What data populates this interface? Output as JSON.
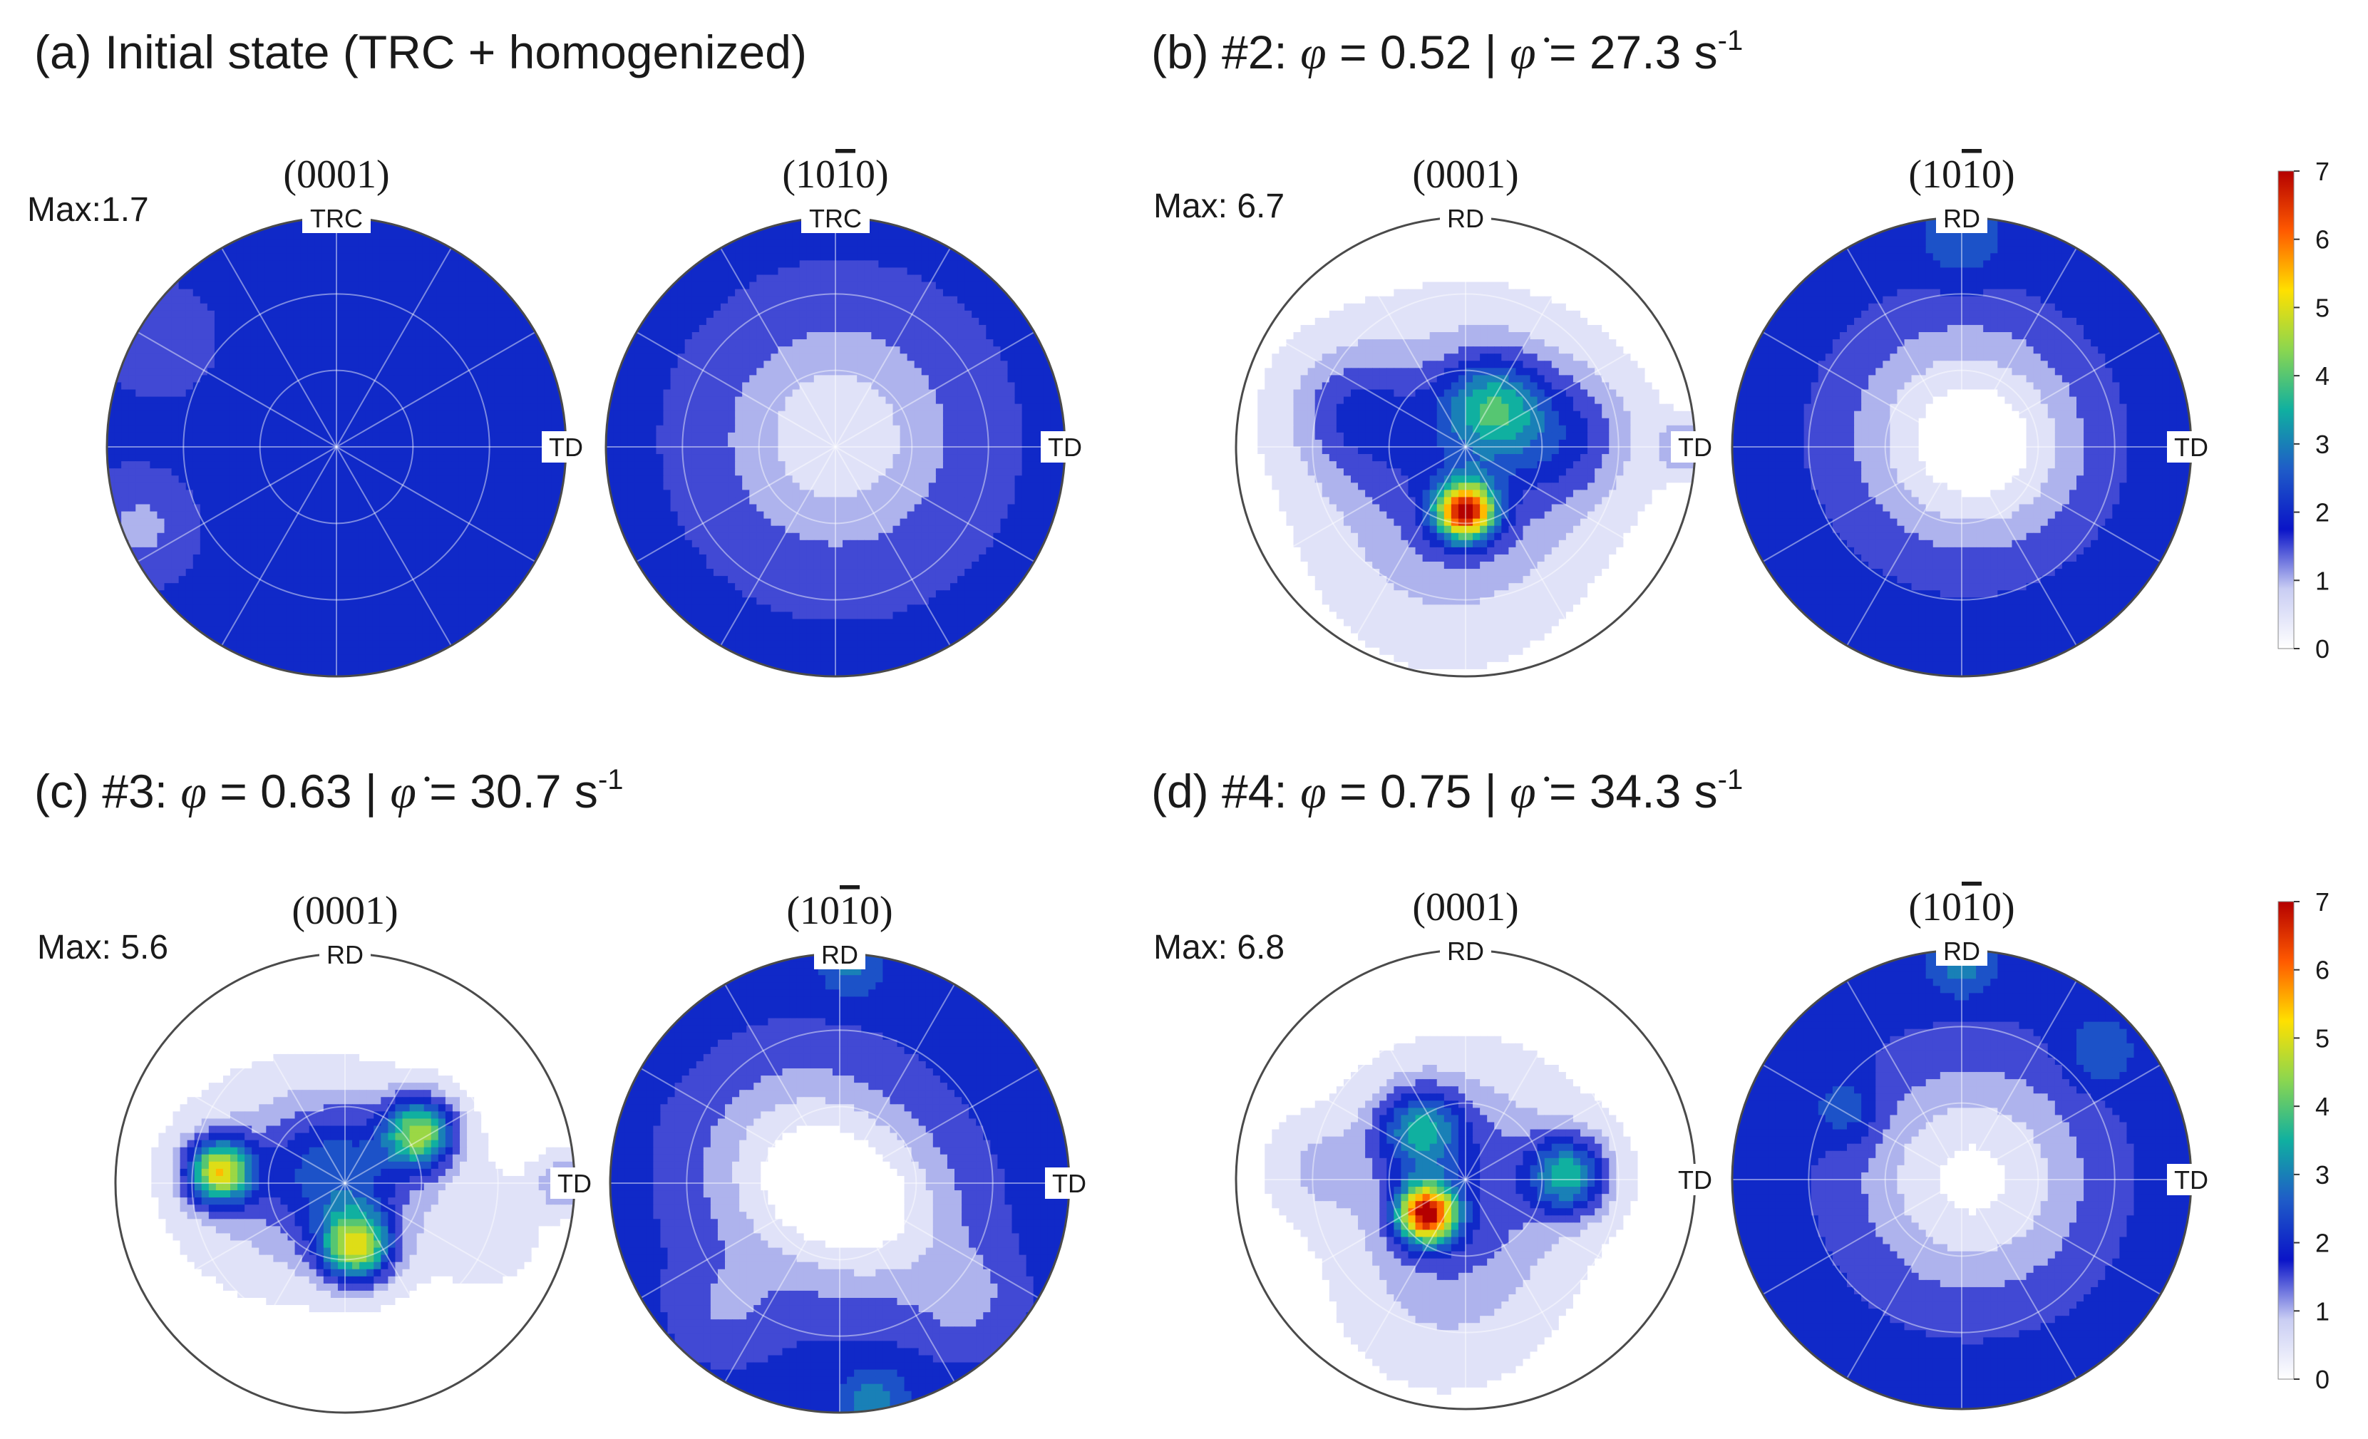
{
  "colormap": [
    "#ffffff",
    "#c9cdf3",
    "#0a14c8",
    "#1f5cc8",
    "#10b0a0",
    "#8ad650",
    "#ffe000",
    "#ff5a00",
    "#b40000"
  ],
  "colorbar": {
    "min": 0,
    "max": 7,
    "ticks": [
      "0",
      "1",
      "2",
      "3",
      "4",
      "5",
      "6",
      "7"
    ]
  },
  "chart_data": [
    {
      "type": "heatmap",
      "panel": "(a)",
      "title_parts": {
        "prefix": "(a) Initial state (TRC + homogenized)"
      },
      "max_label": "Max:1.7",
      "figures": [
        {
          "label": "(0001)",
          "top": "TRC",
          "right": "TD",
          "background": 1.9,
          "blobs": [
            {
              "x": -0.85,
              "y": -0.35,
              "i": -0.8,
              "s": 0.16
            },
            {
              "x": -0.75,
              "y": 0.45,
              "i": -0.4,
              "s": 0.2
            },
            {
              "x": 0.0,
              "y": 0.0,
              "i": 0.15,
              "s": 0.5
            }
          ]
        },
        {
          "label": "(10̅1̅0)",
          "label_text": "(10",
          "label_bar": "1",
          "label_end": "0)",
          "top": "TRC",
          "right": "TD",
          "background": 1.95,
          "blobs": [
            {
              "x": 0.0,
              "y": 0.05,
              "i": -1.2,
              "s": 0.32
            },
            {
              "x": 0.05,
              "y": 0.0,
              "i": -0.4,
              "s": 0.55
            }
          ]
        }
      ]
    },
    {
      "type": "heatmap",
      "panel": "(b)",
      "title_parts": {
        "prefix": "(b) #2: ",
        "phi": "φ",
        "eq1": " = 0.52 | ",
        "phidot": "φ̇",
        "eq2": " = 27.3 s",
        "sup": "-1"
      },
      "max_label": "Max: 6.7",
      "figures": [
        {
          "label": "(0001)",
          "top": "RD",
          "right": "TD",
          "background": 0.0,
          "blobs": [
            {
              "x": 0.0,
              "y": -0.28,
              "i": 5.5,
              "s": 0.09
            },
            {
              "x": 0.12,
              "y": 0.18,
              "i": 2.3,
              "s": 0.15
            },
            {
              "x": -0.5,
              "y": 0.15,
              "i": 1.3,
              "s": 0.2
            },
            {
              "x": 0.45,
              "y": 0.05,
              "i": 1.2,
              "s": 0.2
            },
            {
              "x": 0.0,
              "y": 0.0,
              "i": 1.5,
              "s": 0.38
            },
            {
              "x": 0.95,
              "y": 0.0,
              "i": 1.2,
              "s": 0.08
            },
            {
              "x": -0.1,
              "y": -0.45,
              "i": 0.6,
              "s": 0.35
            }
          ]
        },
        {
          "label": "(10̅1̅0)",
          "label_text": "(10",
          "label_bar": "1",
          "label_end": "0)",
          "top": "RD",
          "right": "TD",
          "background": 2.0,
          "blobs": [
            {
              "x": 0.0,
              "y": 0.05,
              "i": -1.9,
              "s": 0.34
            },
            {
              "x": 0.2,
              "y": -0.05,
              "i": -0.5,
              "s": 0.25
            },
            {
              "x": 0.0,
              "y": 0.9,
              "i": 0.8,
              "s": 0.12
            }
          ]
        }
      ]
    },
    {
      "type": "heatmap",
      "panel": "(c)",
      "title_parts": {
        "prefix": "(c) #3: ",
        "phi": "φ",
        "eq1": " = 0.63 | ",
        "phidot": "φ̇",
        "eq2": " = 30.7 s",
        "sup": "-1"
      },
      "max_label": "Max: 5.6",
      "figures": [
        {
          "label": "(0001)",
          "top": "RD",
          "right": "TD",
          "background": 0.0,
          "blobs": [
            {
              "x": -0.55,
              "y": 0.05,
              "i": 4.5,
              "s": 0.1
            },
            {
              "x": 0.33,
              "y": 0.22,
              "i": 4.0,
              "s": 0.11
            },
            {
              "x": 0.05,
              "y": -0.28,
              "i": 4.2,
              "s": 0.11
            },
            {
              "x": 0.0,
              "y": 0.05,
              "i": 2.0,
              "s": 0.22
            },
            {
              "x": -0.3,
              "y": 0.0,
              "i": 1.0,
              "s": 0.3
            },
            {
              "x": 0.95,
              "y": 0.0,
              "i": 1.3,
              "s": 0.08
            },
            {
              "x": 0.6,
              "y": -0.2,
              "i": 0.5,
              "s": 0.2
            }
          ]
        },
        {
          "label": "(10̅1̅0)",
          "label_text": "(10",
          "label_bar": "1",
          "label_end": "0)",
          "top": "RD",
          "right": "TD",
          "background": 1.9,
          "blobs": [
            {
              "x": -0.15,
              "y": 0.05,
              "i": -1.9,
              "s": 0.3
            },
            {
              "x": 0.2,
              "y": -0.15,
              "i": -1.2,
              "s": 0.25
            },
            {
              "x": 0.55,
              "y": -0.5,
              "i": -0.8,
              "s": 0.15
            },
            {
              "x": -0.5,
              "y": -0.55,
              "i": -0.6,
              "s": 0.15
            },
            {
              "x": 0.15,
              "y": -0.95,
              "i": 1.2,
              "s": 0.1
            },
            {
              "x": 0.05,
              "y": 0.95,
              "i": 1.0,
              "s": 0.1
            }
          ]
        }
      ]
    },
    {
      "type": "heatmap",
      "panel": "(d)",
      "title_parts": {
        "prefix": "(d) #4: ",
        "phi": "φ",
        "eq1": " = 0.75 | ",
        "phidot": "φ̇",
        "eq2": " = 34.3 s",
        "sup": "-1"
      },
      "max_label": "Max: 6.8",
      "figures": [
        {
          "label": "(0001)",
          "top": "RD",
          "right": "TD",
          "background": 0.0,
          "blobs": [
            {
              "x": -0.17,
              "y": -0.15,
              "i": 5.8,
              "s": 0.09
            },
            {
              "x": -0.2,
              "y": 0.22,
              "i": 2.5,
              "s": 0.13
            },
            {
              "x": 0.45,
              "y": 0.02,
              "i": 3.0,
              "s": 0.12
            },
            {
              "x": 0.0,
              "y": 0.0,
              "i": 1.5,
              "s": 0.33
            },
            {
              "x": -0.65,
              "y": 0.05,
              "i": 0.7,
              "s": 0.15
            },
            {
              "x": -0.1,
              "y": -0.5,
              "i": 0.6,
              "s": 0.3
            }
          ]
        },
        {
          "label": "(10̅1̅0)",
          "label_text": "(10",
          "label_bar": "1",
          "label_end": "0)",
          "top": "RD",
          "right": "TD",
          "background": 2.0,
          "blobs": [
            {
              "x": 0.05,
              "y": 0.0,
              "i": -1.9,
              "s": 0.35
            },
            {
              "x": -0.5,
              "y": 0.3,
              "i": 0.9,
              "s": 0.1
            },
            {
              "x": 0.6,
              "y": 0.55,
              "i": 0.9,
              "s": 0.1
            },
            {
              "x": 0.0,
              "y": 0.93,
              "i": 1.0,
              "s": 0.1
            }
          ]
        }
      ]
    }
  ]
}
